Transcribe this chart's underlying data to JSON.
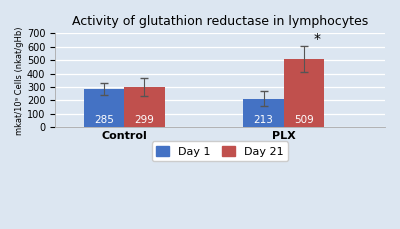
{
  "title": "Activity of glutathion reductase in lymphocytes",
  "ylabel": "mkat/10⁹ Cells (nkat/gHb)",
  "groups": [
    "Control",
    "PLX"
  ],
  "day1_values": [
    285,
    213
  ],
  "day21_values": [
    299,
    509
  ],
  "day1_errors": [
    45,
    55
  ],
  "day21_errors": [
    65,
    95
  ],
  "day1_color": "#4472C4",
  "day21_color": "#C0504D",
  "ylim": [
    0,
    700
  ],
  "yticks": [
    0,
    100,
    200,
    300,
    400,
    500,
    600,
    700
  ],
  "bar_width": 0.38,
  "significance_label": "*",
  "plot_bg_color": "#dce6f1",
  "figure_bg_color": "#dce6f1",
  "grid_color": "#ffffff",
  "legend_labels": [
    "Day 1",
    "Day 21"
  ],
  "group_positions": [
    0.75,
    2.25
  ],
  "xlim": [
    0.1,
    3.2
  ]
}
